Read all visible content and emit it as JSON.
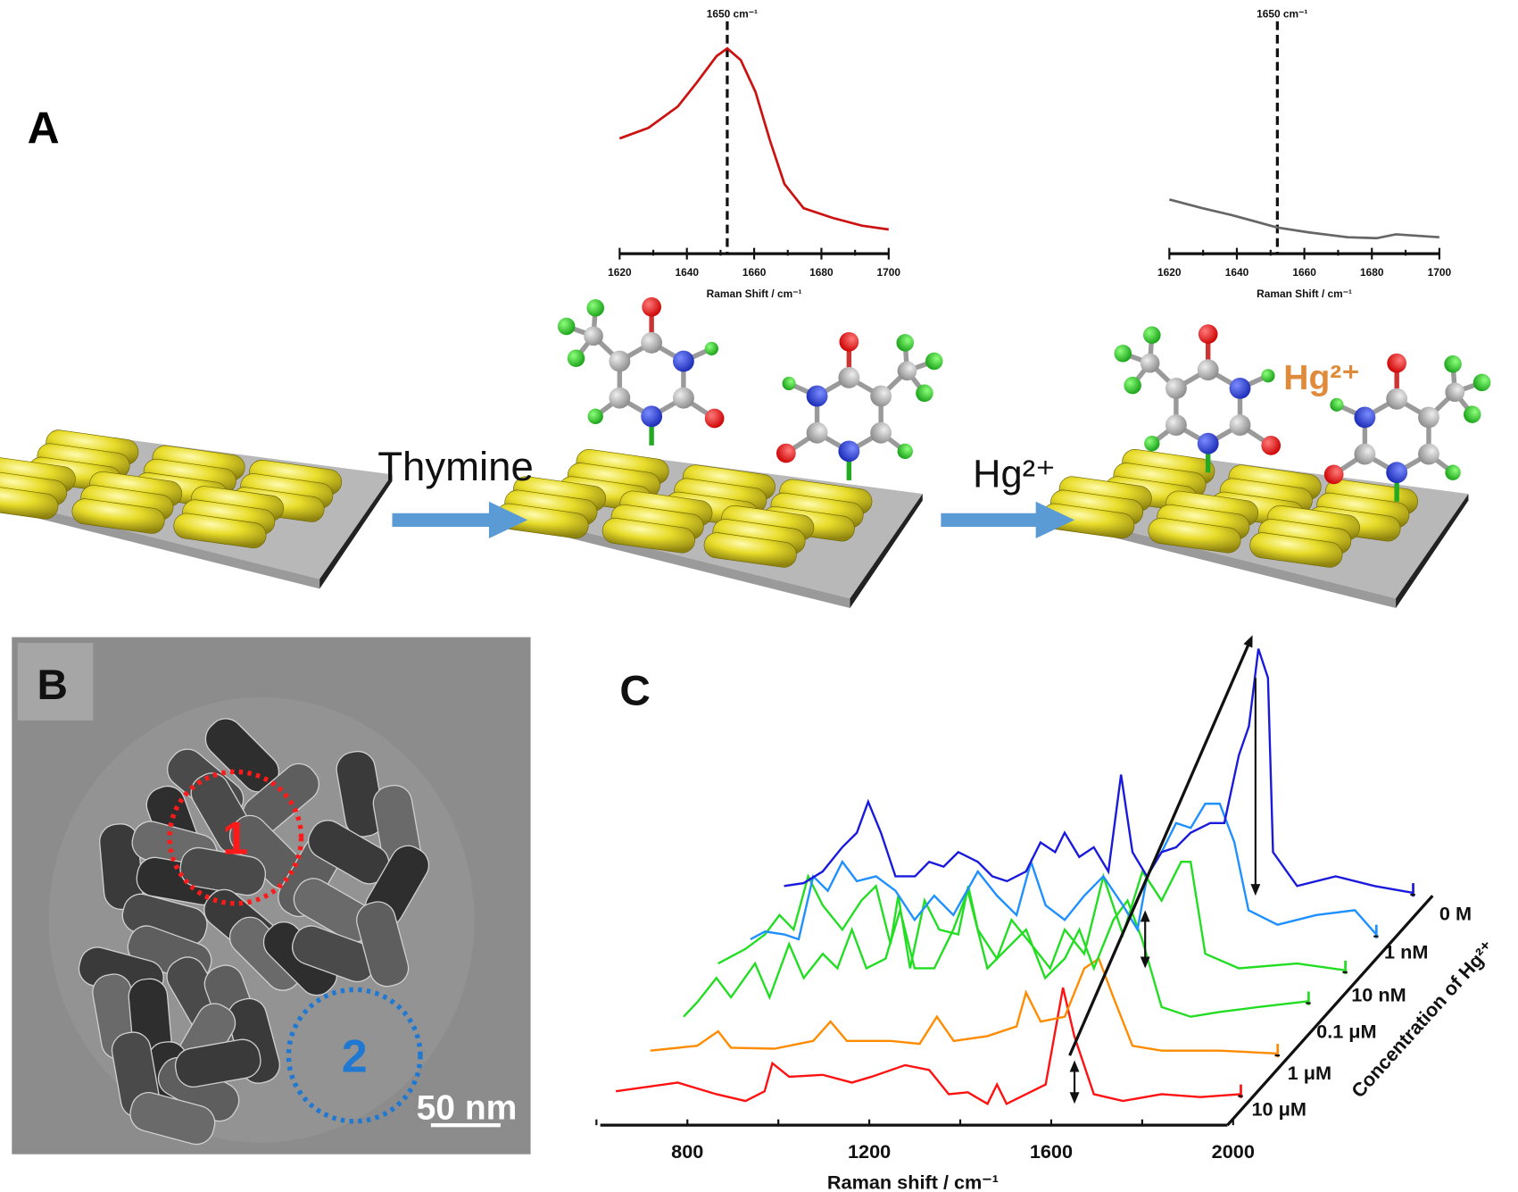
{
  "panels": {
    "A": {
      "label": "A",
      "step1_label": "Thymine",
      "step2_label": "Hg²⁺",
      "ion_label": "Hg²⁺",
      "ion_color": "#e08a3c",
      "arrow_color": "#5b9bd5"
    },
    "B": {
      "label": "B",
      "region1": "1",
      "region2": "2",
      "scale_bar": "50 nm",
      "region1_color": "#ff1a1a",
      "region2_color": "#1f78d1"
    },
    "C": {
      "label": "C"
    }
  },
  "chart_data": [
    {
      "type": "line",
      "xlabel": "Raman Shift / cm⁻¹",
      "ylabel": "",
      "xlim": [
        1620,
        1700
      ],
      "xticks": [
        "1620",
        "1640",
        "1660",
        "1680",
        "1700"
      ],
      "marker_label": "1650 cm⁻¹",
      "marker_x": 1652,
      "color": "#cc1111",
      "points": [
        [
          1620,
          119
        ],
        [
          1628.6,
          130
        ],
        [
          1637.3,
          152
        ],
        [
          1643,
          177
        ],
        [
          1648.8,
          204
        ],
        [
          1652,
          212
        ],
        [
          1656,
          200
        ],
        [
          1660.4,
          167
        ],
        [
          1664.7,
          117
        ],
        [
          1669,
          72
        ],
        [
          1674.7,
          47
        ],
        [
          1683.3,
          37
        ],
        [
          1692,
          29
        ],
        [
          1700,
          25
        ]
      ]
    },
    {
      "type": "line",
      "xlabel": "Raman Shift / cm⁻¹",
      "ylabel": "",
      "xlim": [
        1620,
        1700
      ],
      "xticks": [
        "1620",
        "1640",
        "1660",
        "1680",
        "1700"
      ],
      "marker_label": "1650 cm⁻¹",
      "marker_x": 1652,
      "color": "#666666",
      "points": [
        [
          1620,
          56
        ],
        [
          1629.8,
          47
        ],
        [
          1638.4,
          40
        ],
        [
          1652,
          27
        ],
        [
          1661.3,
          22
        ],
        [
          1672.8,
          17
        ],
        [
          1681.4,
          16
        ],
        [
          1687.1,
          20
        ],
        [
          1700,
          17
        ]
      ]
    },
    {
      "type": "line",
      "xlabel": "Raman shift / cm⁻¹",
      "zlabel": "Concentration of Hg²⁺",
      "xlim": [
        600,
        2000
      ],
      "xticks": [
        "800",
        "1200",
        "1600",
        "2000"
      ],
      "series": [
        {
          "name": "10 μM",
          "color": "#ff1111",
          "points": [
            [
              613,
              3
            ],
            [
              749,
              12
            ],
            [
              834,
              0
            ],
            [
              898,
              -7
            ],
            [
              940,
              3
            ],
            [
              957,
              32
            ],
            [
              994,
              18
            ],
            [
              1068,
              20
            ],
            [
              1132,
              12
            ],
            [
              1175,
              18
            ],
            [
              1249,
              30
            ],
            [
              1302,
              25
            ],
            [
              1345,
              0
            ],
            [
              1387,
              2
            ],
            [
              1430,
              -10
            ],
            [
              1451,
              10
            ],
            [
              1472,
              -10
            ],
            [
              1515,
              0
            ],
            [
              1558,
              10
            ],
            [
              1596,
              110
            ],
            [
              1621,
              60
            ],
            [
              1664,
              0
            ],
            [
              1728,
              -7
            ],
            [
              1813,
              0
            ],
            [
              1898,
              -3
            ],
            [
              1987,
              0
            ]
          ]
        },
        {
          "name": "1 μM",
          "color": "#ff8c00",
          "points": [
            [
              608,
              3
            ],
            [
              711,
              8
            ],
            [
              757,
              23
            ],
            [
              785,
              6
            ],
            [
              881,
              5
            ],
            [
              966,
              13
            ],
            [
              1004,
              33
            ],
            [
              1040,
              13
            ],
            [
              1136,
              13
            ],
            [
              1200,
              10
            ],
            [
              1238,
              38
            ],
            [
              1275,
              13
            ],
            [
              1349,
              18
            ],
            [
              1413,
              28
            ],
            [
              1434,
              63
            ],
            [
              1466,
              33
            ],
            [
              1519,
              38
            ],
            [
              1562,
              88
            ],
            [
              1594,
              98
            ],
            [
              1626,
              58
            ],
            [
              1668,
              8
            ],
            [
              1732,
              3
            ],
            [
              1860,
              3
            ],
            [
              1987,
              0
            ]
          ]
        },
        {
          "name": "0.1 μM",
          "color": "#22dd22",
          "points": [
            [
              613,
              -16
            ],
            [
              643,
              -1
            ],
            [
              685,
              24
            ],
            [
              717,
              4
            ],
            [
              770,
              39
            ],
            [
              802,
              4
            ],
            [
              845,
              59
            ],
            [
              877,
              24
            ],
            [
              919,
              49
            ],
            [
              951,
              34
            ],
            [
              983,
              74
            ],
            [
              1015,
              34
            ],
            [
              1057,
              44
            ],
            [
              1089,
              94
            ],
            [
              1121,
              34
            ],
            [
              1164,
              34
            ],
            [
              1206,
              74
            ],
            [
              1238,
              114
            ],
            [
              1281,
              34
            ],
            [
              1323,
              54
            ],
            [
              1366,
              74
            ],
            [
              1408,
              24
            ],
            [
              1451,
              44
            ],
            [
              1483,
              74
            ],
            [
              1515,
              34
            ],
            [
              1558,
              84
            ],
            [
              1589,
              104
            ],
            [
              1621,
              64
            ],
            [
              1664,
              -6
            ],
            [
              1728,
              -16
            ],
            [
              1792,
              -11
            ],
            [
              1877,
              -6
            ],
            [
              1987,
              0
            ]
          ]
        },
        {
          "name": "10 nM",
          "color": "#22dd22",
          "points": [
            [
              608,
              7
            ],
            [
              668,
              22
            ],
            [
              711,
              37
            ],
            [
              743,
              57
            ],
            [
              774,
              42
            ],
            [
              806,
              97
            ],
            [
              838,
              67
            ],
            [
              881,
              42
            ],
            [
              923,
              72
            ],
            [
              955,
              87
            ],
            [
              987,
              27
            ],
            [
              1004,
              77
            ],
            [
              1030,
              2
            ],
            [
              1062,
              72
            ],
            [
              1094,
              42
            ],
            [
              1136,
              37
            ],
            [
              1158,
              87
            ],
            [
              1179,
              42
            ],
            [
              1221,
              12
            ],
            [
              1253,
              52
            ],
            [
              1296,
              27
            ],
            [
              1338,
              2
            ],
            [
              1370,
              42
            ],
            [
              1413,
              17
            ],
            [
              1455,
              97
            ],
            [
              1498,
              37
            ],
            [
              1541,
              102
            ],
            [
              1583,
              72
            ],
            [
              1626,
              112
            ],
            [
              1647,
              112
            ],
            [
              1679,
              17
            ],
            [
              1753,
              2
            ],
            [
              1881,
              7
            ],
            [
              1987,
              0
            ]
          ]
        },
        {
          "name": "1 nM",
          "color": "#1e90ff",
          "points": [
            [
              611,
              -5
            ],
            [
              643,
              3
            ],
            [
              685,
              0
            ],
            [
              717,
              -5
            ],
            [
              749,
              60
            ],
            [
              781,
              45
            ],
            [
              813,
              75
            ],
            [
              845,
              55
            ],
            [
              887,
              60
            ],
            [
              930,
              45
            ],
            [
              972,
              15
            ],
            [
              1015,
              40
            ],
            [
              1057,
              20
            ],
            [
              1111,
              65
            ],
            [
              1153,
              40
            ],
            [
              1196,
              20
            ],
            [
              1228,
              75
            ],
            [
              1260,
              30
            ],
            [
              1302,
              15
            ],
            [
              1345,
              40
            ],
            [
              1387,
              60
            ],
            [
              1430,
              30
            ],
            [
              1462,
              5
            ],
            [
              1483,
              60
            ],
            [
              1515,
              85
            ],
            [
              1547,
              115
            ],
            [
              1579,
              110
            ],
            [
              1611,
              135
            ],
            [
              1643,
              135
            ],
            [
              1675,
              95
            ],
            [
              1706,
              25
            ],
            [
              1770,
              10
            ],
            [
              1855,
              20
            ],
            [
              1940,
              25
            ],
            [
              1987,
              0
            ]
          ]
        },
        {
          "name": "0 M",
          "color": "#1a1adc",
          "points": [
            [
              604,
              7
            ],
            [
              647,
              10
            ],
            [
              689,
              22
            ],
            [
              732,
              47
            ],
            [
              764,
              62
            ],
            [
              789,
              94
            ],
            [
              817,
              62
            ],
            [
              849,
              17
            ],
            [
              892,
              17
            ],
            [
              923,
              32
            ],
            [
              955,
              27
            ],
            [
              987,
              42
            ],
            [
              1030,
              32
            ],
            [
              1062,
              17
            ],
            [
              1094,
              12
            ],
            [
              1136,
              22
            ],
            [
              1168,
              52
            ],
            [
              1200,
              42
            ],
            [
              1221,
              62
            ],
            [
              1253,
              37
            ],
            [
              1285,
              47
            ],
            [
              1317,
              22
            ],
            [
              1345,
              122
            ],
            [
              1370,
              42
            ],
            [
              1402,
              17
            ],
            [
              1434,
              42
            ],
            [
              1466,
              47
            ],
            [
              1498,
              62
            ],
            [
              1541,
              72
            ],
            [
              1572,
              72
            ],
            [
              1604,
              142
            ],
            [
              1626,
              172
            ],
            [
              1647,
              252
            ],
            [
              1668,
              222
            ],
            [
              1679,
              42
            ],
            [
              1732,
              7
            ],
            [
              1817,
              17
            ],
            [
              1902,
              7
            ],
            [
              1987,
              0
            ]
          ]
        }
      ]
    }
  ]
}
